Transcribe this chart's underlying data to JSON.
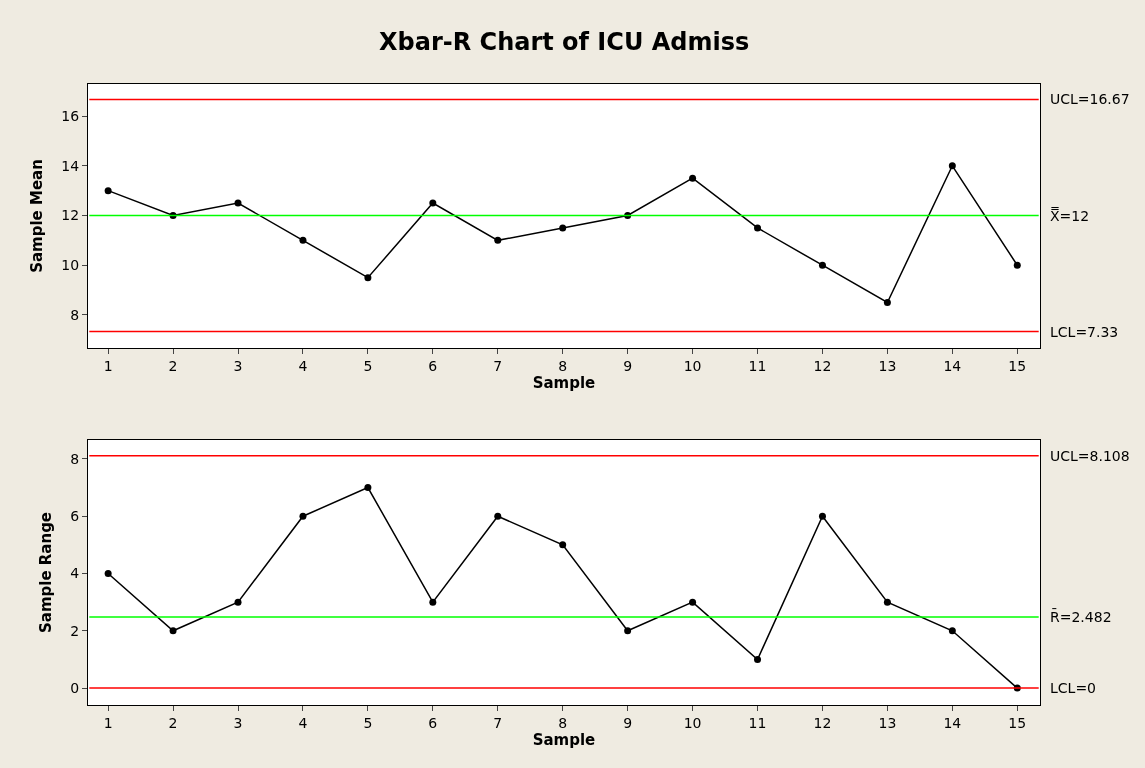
{
  "chart_data": [
    {
      "type": "line",
      "title": "Xbar-R Chart of ICU Admiss",
      "xlabel": "Sample",
      "ylabel": "Sample Mean",
      "x": [
        1,
        2,
        3,
        4,
        5,
        6,
        7,
        8,
        9,
        10,
        11,
        12,
        13,
        14,
        15
      ],
      "series": [
        {
          "color": "#000000",
          "values": [
            13,
            12,
            12.5,
            11,
            9.5,
            12.5,
            11,
            11.5,
            12,
            13.5,
            11.5,
            10,
            8.5,
            14,
            10
          ]
        }
      ],
      "marker": "circle",
      "line_style": "solid",
      "xlim": [
        0.69,
        15.35
      ],
      "xticks": [
        1,
        2,
        3,
        4,
        5,
        6,
        7,
        8,
        9,
        10,
        11,
        12,
        13,
        14,
        15
      ],
      "ylim": [
        6.67,
        17.29
      ],
      "yticks": [
        8,
        10,
        12,
        14,
        16
      ],
      "ref_lines": [
        {
          "axis": "y",
          "value": 16.67,
          "label": "UCL=16.67",
          "color": "#ff0000"
        },
        {
          "axis": "y",
          "value": 12,
          "label": "X̿=12",
          "color": "#00ff00"
        },
        {
          "axis": "y",
          "value": 7.33,
          "label": "LCL=7.33",
          "color": "#ff0000"
        }
      ]
    },
    {
      "type": "line",
      "xlabel": "Sample",
      "ylabel": "Sample Range",
      "x": [
        1,
        2,
        3,
        4,
        5,
        6,
        7,
        8,
        9,
        10,
        11,
        12,
        13,
        14,
        15
      ],
      "series": [
        {
          "color": "#000000",
          "values": [
            4,
            2,
            3,
            6,
            7,
            3,
            6,
            5,
            2,
            3,
            1,
            6,
            3,
            2,
            0
          ]
        }
      ],
      "marker": "circle",
      "line_style": "solid",
      "xlim": [
        0.69,
        15.35
      ],
      "xticks": [
        1,
        2,
        3,
        4,
        5,
        6,
        7,
        8,
        9,
        10,
        11,
        12,
        13,
        14,
        15
      ],
      "ylim": [
        -0.59,
        8.66
      ],
      "yticks": [
        0,
        2,
        4,
        6,
        8
      ],
      "ref_lines": [
        {
          "axis": "y",
          "value": 8.108,
          "label": "UCL=8.108",
          "color": "#ff0000"
        },
        {
          "axis": "y",
          "value": 2.482,
          "label": "R̄=2.482",
          "color": "#00ff00"
        },
        {
          "axis": "y",
          "value": 0,
          "label": "LCL=0",
          "color": "#ff0000"
        }
      ]
    }
  ]
}
